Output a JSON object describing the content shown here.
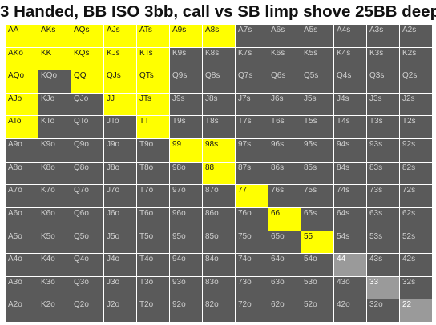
{
  "chart_data": {
    "type": "heatmap",
    "title": "3 Handed, BB ISO 3bb, call vs SB limp shove 25BB deep",
    "ranks": [
      "A",
      "K",
      "Q",
      "J",
      "T",
      "9",
      "8",
      "7",
      "6",
      "5",
      "4",
      "3",
      "2"
    ],
    "legend": "none",
    "colors": {
      "in_range": "#ffff00",
      "out_of_range": "#5a5a5a",
      "out_of_range_pair": "#9a9a9a",
      "label_in_range": "#1a1a1a",
      "label_out_of_range": "#cfcfcf",
      "label_out_of_range_pair": "#ffffff"
    },
    "rows": [
      {
        "hands": [
          "AA",
          "AKs",
          "AQs",
          "AJs",
          "ATs",
          "A9s",
          "A8s",
          "A7s",
          "A6s",
          "A5s",
          "A4s",
          "A3s",
          "A2s"
        ],
        "in_range": [
          1,
          1,
          1,
          1,
          1,
          1,
          1,
          0,
          0,
          0,
          0,
          0,
          0
        ]
      },
      {
        "hands": [
          "AKo",
          "KK",
          "KQs",
          "KJs",
          "KTs",
          "K9s",
          "K8s",
          "K7s",
          "K6s",
          "K5s",
          "K4s",
          "K3s",
          "K2s"
        ],
        "in_range": [
          1,
          1,
          1,
          1,
          1,
          0,
          0,
          0,
          0,
          0,
          0,
          0,
          0
        ]
      },
      {
        "hands": [
          "AQo",
          "KQo",
          "QQ",
          "QJs",
          "QTs",
          "Q9s",
          "Q8s",
          "Q7s",
          "Q6s",
          "Q5s",
          "Q4s",
          "Q3s",
          "Q2s"
        ],
        "in_range": [
          1,
          0,
          1,
          1,
          1,
          0,
          0,
          0,
          0,
          0,
          0,
          0,
          0
        ]
      },
      {
        "hands": [
          "AJo",
          "KJo",
          "QJo",
          "JJ",
          "JTs",
          "J9s",
          "J8s",
          "J7s",
          "J6s",
          "J5s",
          "J4s",
          "J3s",
          "J2s"
        ],
        "in_range": [
          1,
          0,
          0,
          1,
          1,
          0,
          0,
          0,
          0,
          0,
          0,
          0,
          0
        ]
      },
      {
        "hands": [
          "ATo",
          "KTo",
          "QTo",
          "JTo",
          "TT",
          "T9s",
          "T8s",
          "T7s",
          "T6s",
          "T5s",
          "T4s",
          "T3s",
          "T2s"
        ],
        "in_range": [
          1,
          0,
          0,
          0,
          1,
          0,
          0,
          0,
          0,
          0,
          0,
          0,
          0
        ]
      },
      {
        "hands": [
          "A9o",
          "K9o",
          "Q9o",
          "J9o",
          "T9o",
          "99",
          "98s",
          "97s",
          "96s",
          "95s",
          "94s",
          "93s",
          "92s"
        ],
        "in_range": [
          0,
          0,
          0,
          0,
          0,
          1,
          1,
          0,
          0,
          0,
          0,
          0,
          0
        ]
      },
      {
        "hands": [
          "A8o",
          "K8o",
          "Q8o",
          "J8o",
          "T8o",
          "98o",
          "88",
          "87s",
          "86s",
          "85s",
          "84s",
          "83s",
          "82s"
        ],
        "in_range": [
          0,
          0,
          0,
          0,
          0,
          0,
          1,
          0,
          0,
          0,
          0,
          0,
          0
        ]
      },
      {
        "hands": [
          "A7o",
          "K7o",
          "Q7o",
          "J7o",
          "T7o",
          "97o",
          "87o",
          "77",
          "76s",
          "75s",
          "74s",
          "73s",
          "72s"
        ],
        "in_range": [
          0,
          0,
          0,
          0,
          0,
          0,
          0,
          1,
          0,
          0,
          0,
          0,
          0
        ]
      },
      {
        "hands": [
          "A6o",
          "K6o",
          "Q6o",
          "J6o",
          "T6o",
          "96o",
          "86o",
          "76o",
          "66",
          "65s",
          "64s",
          "63s",
          "62s"
        ],
        "in_range": [
          0,
          0,
          0,
          0,
          0,
          0,
          0,
          0,
          1,
          0,
          0,
          0,
          0
        ]
      },
      {
        "hands": [
          "A5o",
          "K5o",
          "Q5o",
          "J5o",
          "T5o",
          "95o",
          "85o",
          "75o",
          "65o",
          "55",
          "54s",
          "53s",
          "52s"
        ],
        "in_range": [
          0,
          0,
          0,
          0,
          0,
          0,
          0,
          0,
          0,
          1,
          0,
          0,
          0
        ]
      },
      {
        "hands": [
          "A4o",
          "K4o",
          "Q4o",
          "J4o",
          "T4o",
          "94o",
          "84o",
          "74o",
          "64o",
          "54o",
          "44",
          "43s",
          "42s"
        ],
        "in_range": [
          0,
          0,
          0,
          0,
          0,
          0,
          0,
          0,
          0,
          0,
          0,
          0,
          0
        ]
      },
      {
        "hands": [
          "A3o",
          "K3o",
          "Q3o",
          "J3o",
          "T3o",
          "93o",
          "83o",
          "73o",
          "63o",
          "53o",
          "43o",
          "33",
          "32s"
        ],
        "in_range": [
          0,
          0,
          0,
          0,
          0,
          0,
          0,
          0,
          0,
          0,
          0,
          0,
          0
        ]
      },
      {
        "hands": [
          "A2o",
          "K2o",
          "Q2o",
          "J2o",
          "T2o",
          "92o",
          "82o",
          "72o",
          "62o",
          "52o",
          "42o",
          "32o",
          "22"
        ],
        "in_range": [
          0,
          0,
          0,
          0,
          0,
          0,
          0,
          0,
          0,
          0,
          0,
          0,
          0
        ]
      }
    ]
  }
}
